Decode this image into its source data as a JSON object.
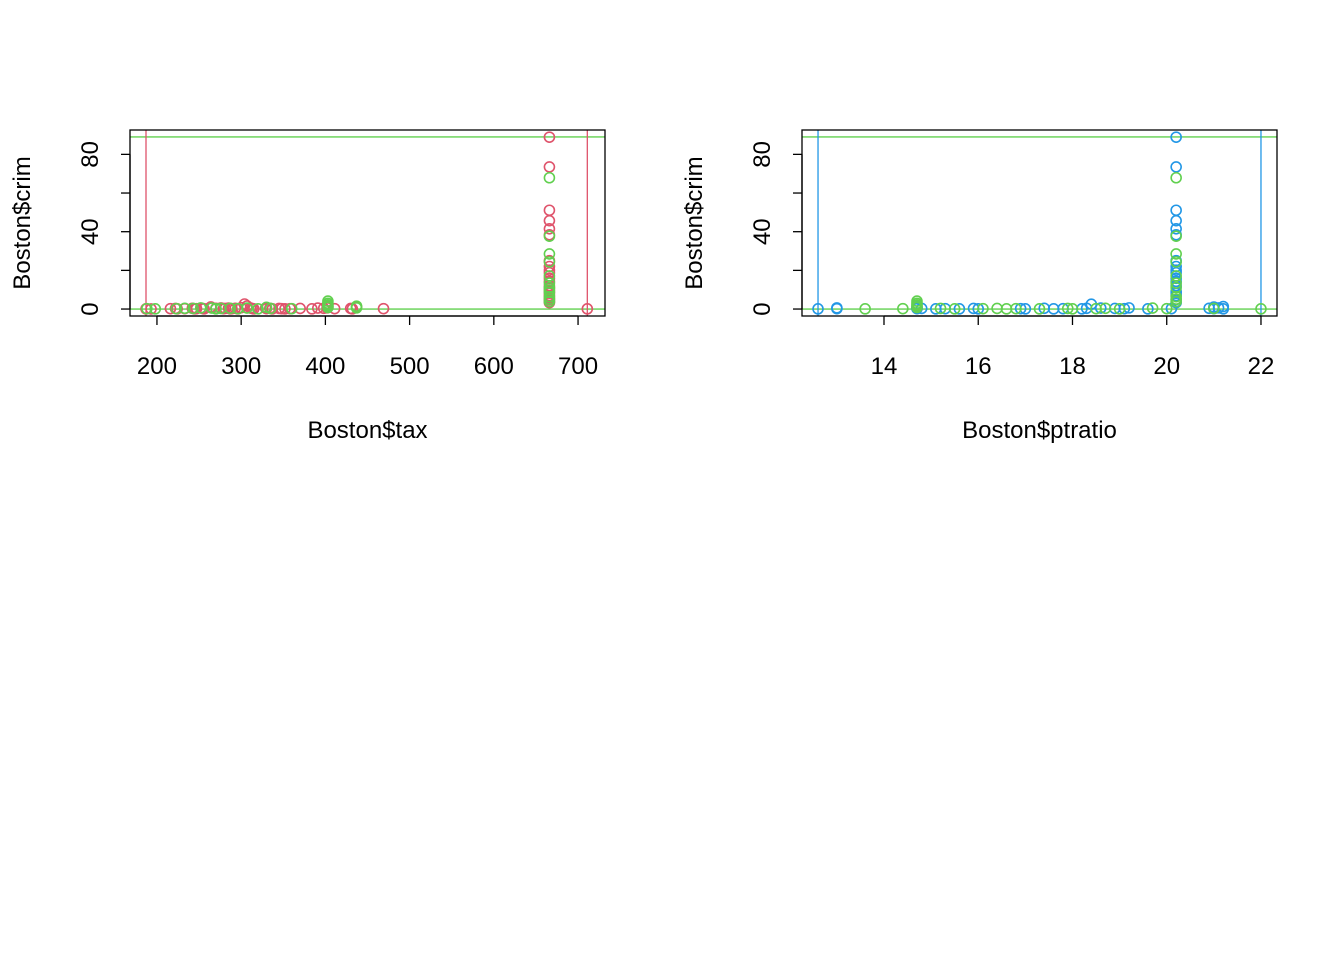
{
  "colors": {
    "red": "#DF536B",
    "green": "#61D04F",
    "blue": "#2297E6",
    "axis": "#000000"
  },
  "chart_data": [
    {
      "type": "scatter",
      "xlabel": "Boston$tax",
      "ylabel": "Boston$crim",
      "xlim": [
        168,
        732
      ],
      "ylim": [
        -3.6,
        92.6
      ],
      "xticks": [
        200,
        300,
        400,
        500,
        600,
        700
      ],
      "yticks": [
        0,
        20,
        40,
        60,
        80
      ],
      "ytick_labels": [
        "0",
        "",
        "40",
        "",
        "80"
      ],
      "grid": false,
      "hlines": [
        {
          "y": 89.0,
          "color": "green"
        },
        {
          "y": 0.0,
          "color": "green"
        }
      ],
      "vlines": [
        {
          "x": 187,
          "color": "red"
        },
        {
          "x": 711,
          "color": "red"
        }
      ],
      "series": [
        {
          "color": "red",
          "points": [
            [
              187,
              0.1
            ],
            [
              193,
              0.05
            ],
            [
              216,
              0.2
            ],
            [
              222,
              0.3
            ],
            [
              224,
              0.1
            ],
            [
              233,
              0.2
            ],
            [
              242,
              0.4
            ],
            [
              245,
              0.1
            ],
            [
              247,
              0.2
            ],
            [
              254,
              0.3
            ],
            [
              256,
              0.1
            ],
            [
              264,
              1.1
            ],
            [
              270,
              0.4
            ],
            [
              276,
              0.6
            ],
            [
              279,
              0.2
            ],
            [
              281,
              0.3
            ],
            [
              285,
              0.5
            ],
            [
              287,
              0.1
            ],
            [
              289,
              0.2
            ],
            [
              293,
              0.4
            ],
            [
              296,
              0.1
            ],
            [
              300,
              0.7
            ],
            [
              304,
              2.6
            ],
            [
              307,
              1.6
            ],
            [
              311,
              0.5
            ],
            [
              313,
              0.3
            ],
            [
              315,
              0.1
            ],
            [
              329,
              0.5
            ],
            [
              330,
              0.2
            ],
            [
              334,
              0.4
            ],
            [
              337,
              0.1
            ],
            [
              345,
              0.3
            ],
            [
              348,
              0.2
            ],
            [
              352,
              0.1
            ],
            [
              358,
              0.2
            ],
            [
              370,
              0.3
            ],
            [
              384,
              0.1
            ],
            [
              391,
              0.5
            ],
            [
              398,
              0.4
            ],
            [
              402,
              0.6
            ],
            [
              403,
              1.1
            ],
            [
              411,
              0.2
            ],
            [
              430,
              0.3
            ],
            [
              432,
              0.1
            ],
            [
              437,
              1.2
            ],
            [
              469,
              0.2
            ],
            [
              711,
              0.1
            ],
            [
              666,
              88.9
            ],
            [
              666,
              73.5
            ],
            [
              666,
              51.1
            ],
            [
              666,
              45.7
            ],
            [
              666,
              41.5
            ],
            [
              666,
              38.4
            ],
            [
              666,
              25.0
            ],
            [
              666,
              22.0
            ],
            [
              666,
              20.1
            ],
            [
              666,
              18.8
            ],
            [
              666,
              15.9
            ],
            [
              666,
              14.3
            ],
            [
              666,
              12.0
            ],
            [
              666,
              10.8
            ],
            [
              666,
              9.2
            ],
            [
              666,
              8.2
            ],
            [
              666,
              7.0
            ],
            [
              666,
              5.8
            ],
            [
              666,
              4.9
            ],
            [
              666,
              4.0
            ],
            [
              666,
              3.3
            ]
          ]
        },
        {
          "color": "green",
          "points": [
            [
              188,
              0.2
            ],
            [
              198,
              0.1
            ],
            [
              223,
              0.2
            ],
            [
              233,
              0.4
            ],
            [
              243,
              0.3
            ],
            [
              252,
              0.6
            ],
            [
              265,
              0.5
            ],
            [
              270,
              0.1
            ],
            [
              276,
              0.3
            ],
            [
              287,
              0.4
            ],
            [
              296,
              0.2
            ],
            [
              307,
              0.5
            ],
            [
              320,
              0.1
            ],
            [
              330,
              0.9
            ],
            [
              335,
              0.3
            ],
            [
              360,
              0.2
            ],
            [
              403,
              4.1
            ],
            [
              403,
              3.0
            ],
            [
              403,
              2.2
            ],
            [
              403,
              1.6
            ],
            [
              403,
              0.8
            ],
            [
              437,
              0.6
            ],
            [
              437,
              1.5
            ],
            [
              666,
              67.9
            ],
            [
              666,
              37.7
            ],
            [
              666,
              28.5
            ],
            [
              666,
              24.4
            ],
            [
              666,
              17.1
            ],
            [
              666,
              13.4
            ],
            [
              666,
              11.1
            ],
            [
              666,
              9.9
            ],
            [
              666,
              8.7
            ],
            [
              666,
              6.4
            ],
            [
              666,
              5.1
            ],
            [
              666,
              3.8
            ]
          ]
        }
      ]
    },
    {
      "type": "scatter",
      "xlabel": "Boston$ptratio",
      "ylabel": "Boston$crim",
      "xlim": [
        12.26,
        22.34
      ],
      "ylim": [
        -3.6,
        92.6
      ],
      "xticks": [
        14,
        16,
        18,
        20,
        22
      ],
      "yticks": [
        0,
        20,
        40,
        60,
        80
      ],
      "ytick_labels": [
        "0",
        "",
        "40",
        "",
        "80"
      ],
      "grid": false,
      "hlines": [
        {
          "y": 89.0,
          "color": "green"
        },
        {
          "y": 0.0,
          "color": "green"
        }
      ],
      "vlines": [
        {
          "x": 12.6,
          "color": "blue"
        },
        {
          "x": 22.0,
          "color": "blue"
        }
      ],
      "series": [
        {
          "color": "blue",
          "points": [
            [
              12.6,
              0.1
            ],
            [
              13.0,
              0.6
            ],
            [
              13.0,
              0.2
            ],
            [
              14.7,
              1.1
            ],
            [
              14.7,
              0.5
            ],
            [
              14.7,
              0.2
            ],
            [
              14.8,
              0.3
            ],
            [
              15.1,
              0.1
            ],
            [
              15.3,
              0.2
            ],
            [
              15.6,
              0.1
            ],
            [
              15.9,
              0.3
            ],
            [
              16.0,
              0.1
            ],
            [
              16.9,
              0.2
            ],
            [
              17.0,
              0.1
            ],
            [
              17.4,
              0.4
            ],
            [
              17.6,
              0.1
            ],
            [
              17.8,
              0.2
            ],
            [
              18.2,
              0.1
            ],
            [
              18.3,
              0.4
            ],
            [
              18.4,
              2.5
            ],
            [
              18.6,
              0.5
            ],
            [
              18.9,
              0.3
            ],
            [
              19.1,
              0.2
            ],
            [
              19.2,
              0.6
            ],
            [
              19.6,
              0.1
            ],
            [
              20.1,
              0.2
            ],
            [
              20.9,
              0.4
            ],
            [
              21.0,
              1.0
            ],
            [
              21.0,
              0.2
            ],
            [
              21.1,
              0.6
            ],
            [
              21.2,
              1.3
            ],
            [
              21.2,
              0.1
            ],
            [
              20.2,
              88.9
            ],
            [
              20.2,
              73.5
            ],
            [
              20.2,
              51.1
            ],
            [
              20.2,
              45.7
            ],
            [
              20.2,
              41.5
            ],
            [
              20.2,
              38.4
            ],
            [
              20.2,
              25.0
            ],
            [
              20.2,
              22.0
            ],
            [
              20.2,
              20.1
            ],
            [
              20.2,
              18.8
            ],
            [
              20.2,
              15.9
            ],
            [
              20.2,
              14.3
            ],
            [
              20.2,
              12.0
            ],
            [
              20.2,
              9.2
            ],
            [
              20.2,
              8.2
            ],
            [
              20.2,
              7.0
            ],
            [
              20.2,
              4.9
            ],
            [
              20.2,
              3.3
            ]
          ]
        },
        {
          "color": "green",
          "points": [
            [
              13.6,
              0.1
            ],
            [
              14.4,
              0.2
            ],
            [
              14.7,
              4.1
            ],
            [
              14.7,
              3.0
            ],
            [
              14.7,
              2.2
            ],
            [
              14.7,
              1.6
            ],
            [
              14.7,
              0.8
            ],
            [
              15.2,
              0.3
            ],
            [
              15.5,
              0.1
            ],
            [
              16.1,
              0.2
            ],
            [
              16.4,
              0.3
            ],
            [
              16.6,
              0.1
            ],
            [
              16.8,
              0.2
            ],
            [
              17.3,
              0.1
            ],
            [
              17.9,
              0.3
            ],
            [
              18.0,
              0.1
            ],
            [
              18.5,
              0.2
            ],
            [
              18.7,
              0.4
            ],
            [
              19.0,
              0.1
            ],
            [
              19.7,
              0.5
            ],
            [
              20.0,
              0.2
            ],
            [
              21.0,
              0.3
            ],
            [
              22.0,
              0.1
            ],
            [
              20.2,
              67.9
            ],
            [
              20.2,
              37.7
            ],
            [
              20.2,
              28.5
            ],
            [
              20.2,
              24.4
            ],
            [
              20.2,
              17.1
            ],
            [
              20.2,
              13.4
            ],
            [
              20.2,
              11.1
            ],
            [
              20.2,
              6.4
            ],
            [
              20.2,
              5.1
            ],
            [
              20.2,
              3.8
            ]
          ]
        }
      ]
    }
  ]
}
